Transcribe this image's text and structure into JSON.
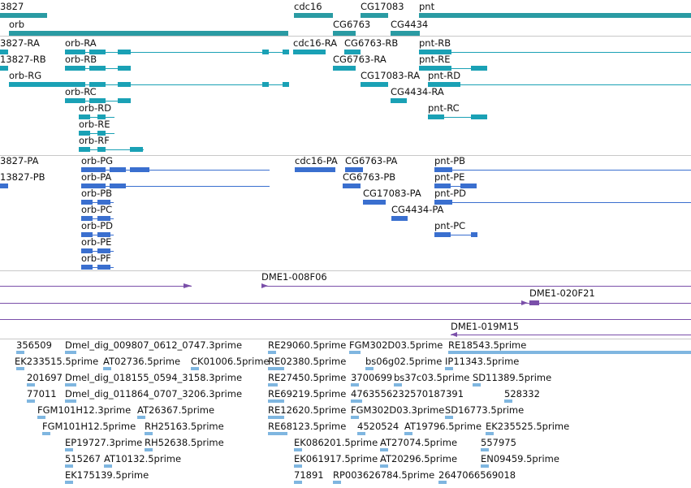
{
  "colors": {
    "gene": "#2a9ba3",
    "transcript_a": "#1aa1b5",
    "transcript_b": "#3a6fcf",
    "clone": "#7a4fa9",
    "est": "#7fb6e0",
    "divider": "#c8c8c8"
  },
  "genes": {
    "labels": [
      "3827",
      "cdc16",
      "CG17083",
      "pnt",
      "orb",
      "CG6763",
      "CG4434"
    ]
  },
  "track1": {
    "labels": [
      "3827-RA",
      "orb-RA",
      "cdc16-RA",
      "CG6763-RB",
      "pnt-RB",
      "13827-RB",
      "orb-RB",
      "CG6763-RA",
      "pnt-RE",
      "orb-RG",
      "CG17083-RA",
      "pnt-RD",
      "orb-RC",
      "CG4434-RA",
      "orb-RD",
      "pnt-RC",
      "orb-RE",
      "orb-RF"
    ]
  },
  "track2": {
    "labels": [
      "3827-PA",
      "orb-PG",
      "cdc16-PA",
      "CG6763-PA",
      "pnt-PB",
      "13827-PB",
      "orb-PA",
      "CG6763-PB",
      "pnt-PE",
      "orb-PB",
      "CG17083-PA",
      "pnt-PD",
      "orb-PC",
      "CG4434-PA",
      "orb-PD",
      "pnt-PC",
      "orb-PE",
      "orb-PF"
    ]
  },
  "track3": {
    "labels": [
      "DME1-008F06",
      "DME1-020F21",
      "DME1-019M15"
    ]
  },
  "track4": {
    "labels": [
      "356509",
      "Dmel_dig_009807_0612_0747.3prime",
      "RE29060.5prime",
      "FGM302D03.5prime",
      "RE18543.5prime",
      "EK233515.5prime",
      "AT02736.5prime",
      "CK01006.5prime",
      "RE02380.5prime",
      "bs06g02.5prime",
      "IP11343.5prime",
      "201697",
      "Dmel_dig_018155_0594_3158.3prime",
      "RE27450.5prime",
      "3700699",
      "bs37c03.5prime",
      "SD11389.5prime",
      "77011",
      "Dmel_dig_011864_0707_3206.3prime",
      "RE69219.5prime",
      "4763556232570187391",
      "528332",
      "FGM101H12.3prime",
      "AT26367.5prime",
      "RE12620.5prime",
      "FGM302D03.3prime",
      "SD16773.5prime",
      "FGM101H12.5prime",
      "RH25163.5prime",
      "RE68123.5prime",
      "4520524",
      "AT19796.5prime",
      "EK235525.5prime",
      "EP19727.3prime",
      "RH52638.5prime",
      "EK086201.5prime",
      "AT27074.5prime",
      "557975",
      "515267",
      "AT10132.5prime",
      "EK061917.5prime",
      "AT20296.5prime",
      "EN09459.5prime",
      "EK175139.5prime",
      "71891",
      "RP003626784.5prime",
      "2647066569018"
    ]
  }
}
